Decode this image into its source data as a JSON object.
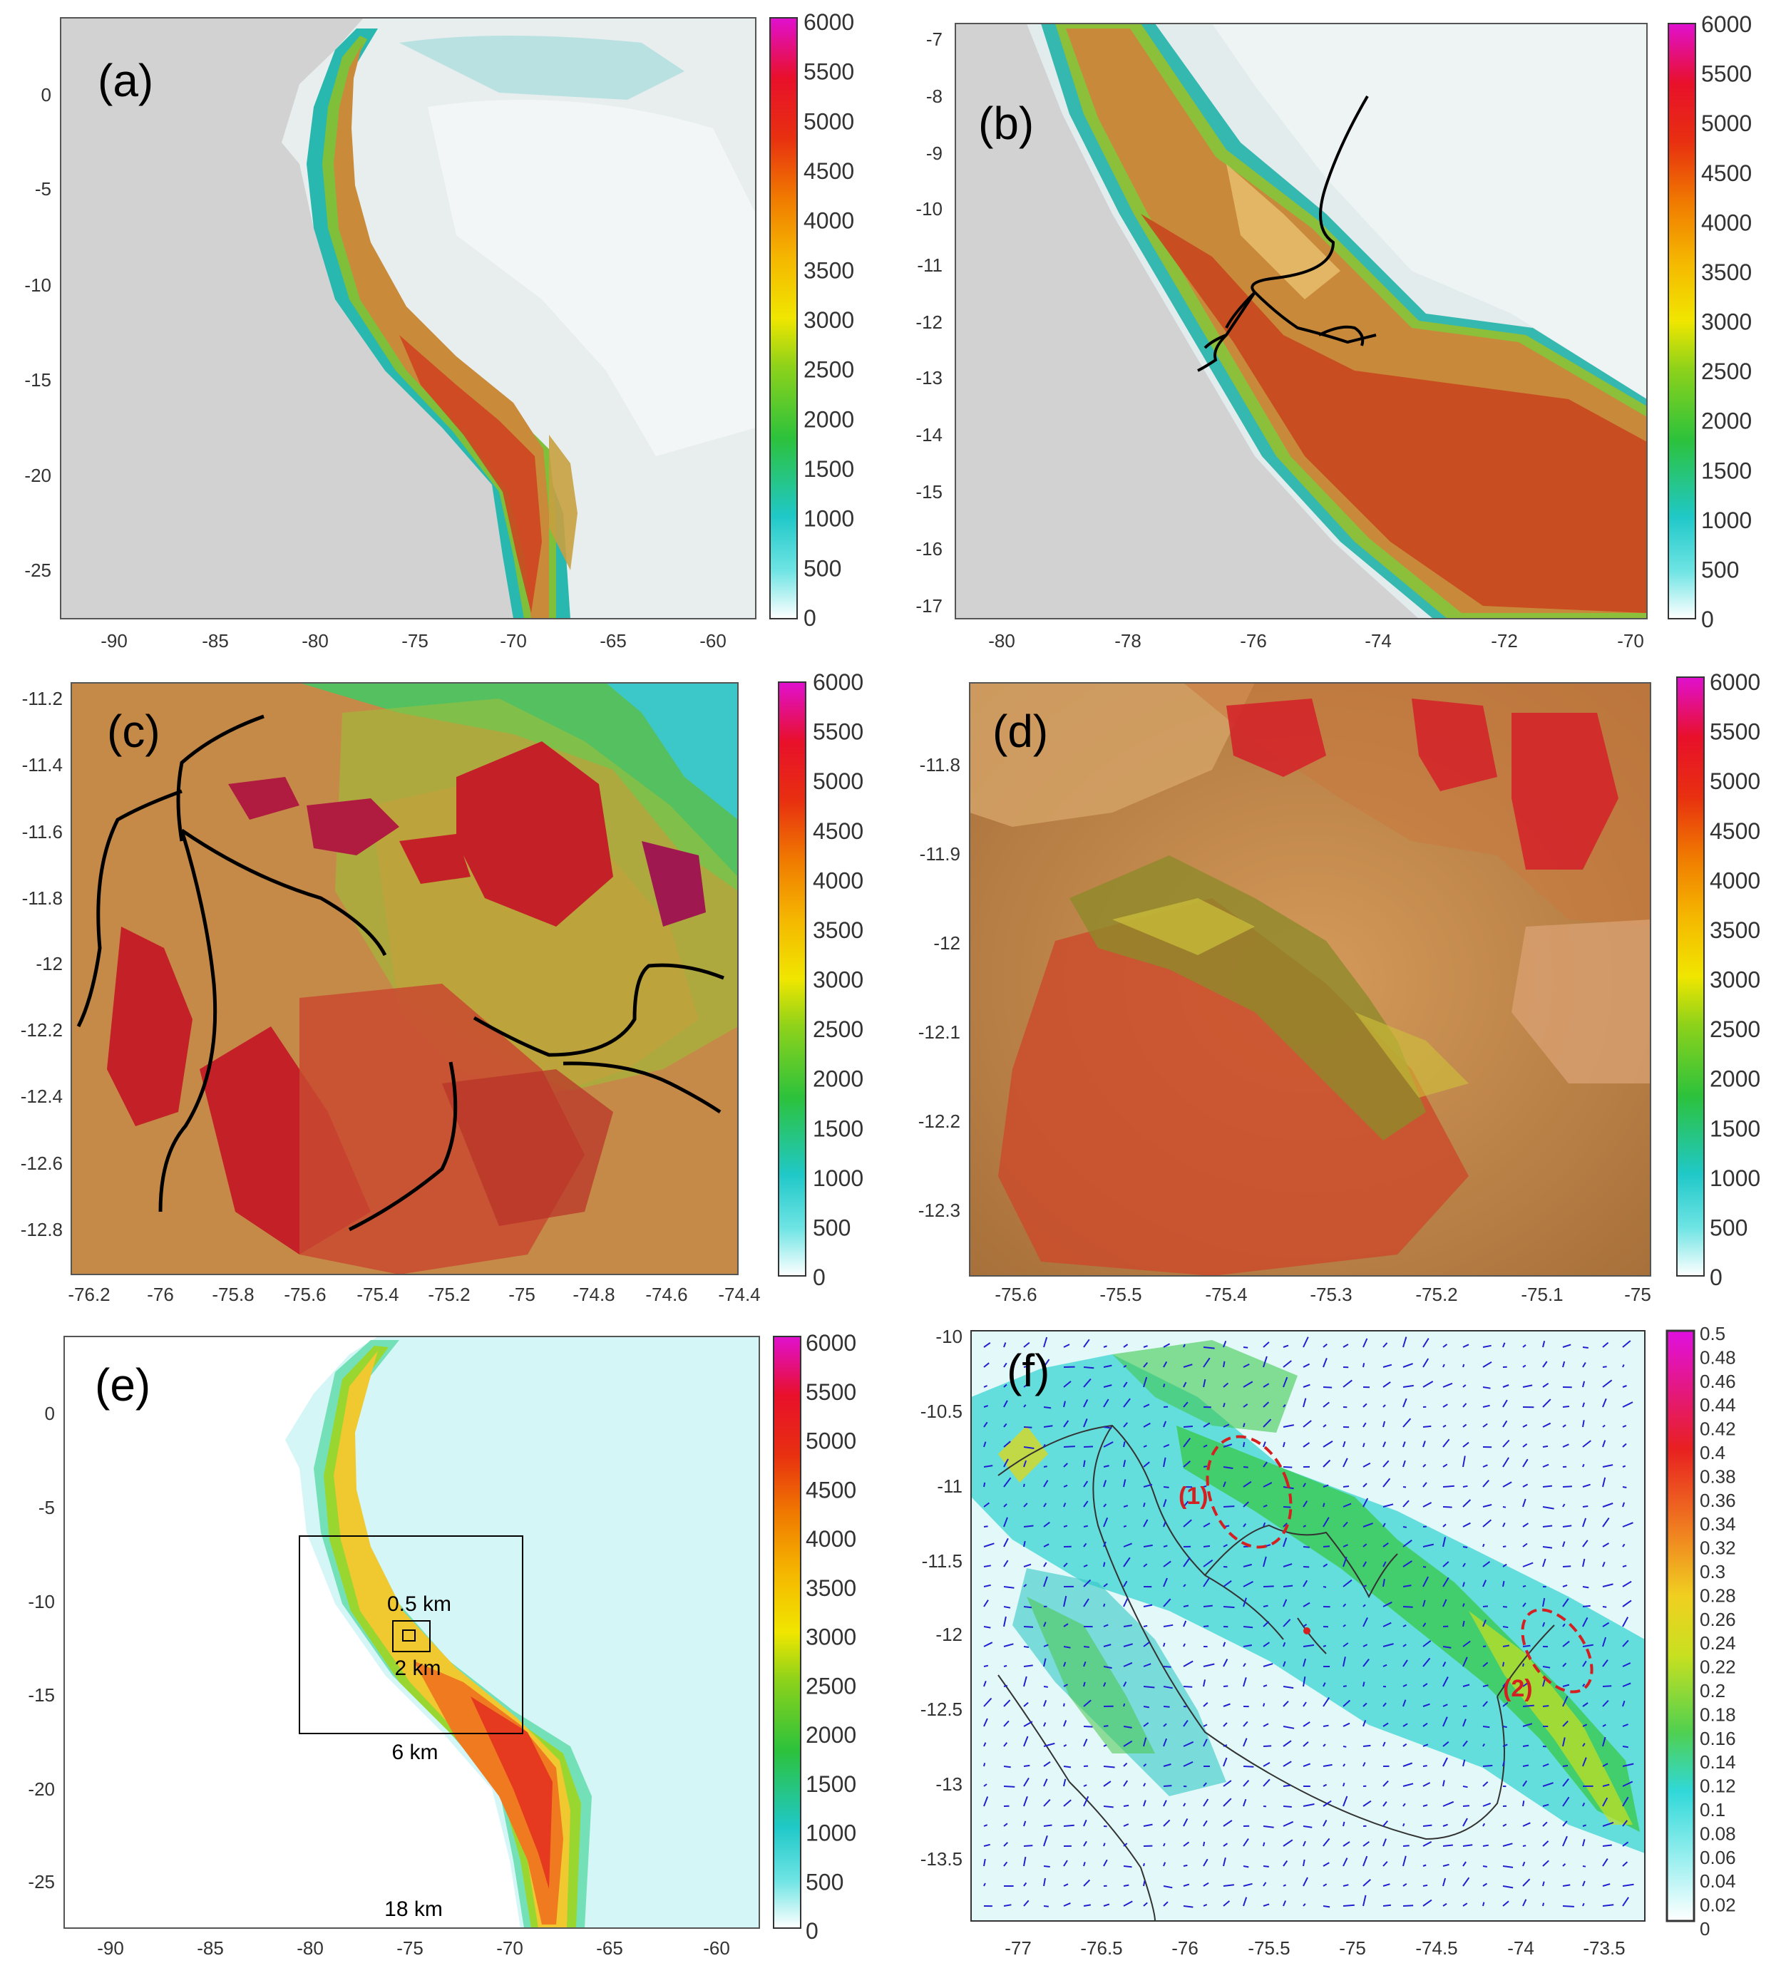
{
  "panels": [
    {
      "id": "a",
      "label": "(a)",
      "x_ticks": [
        "-90",
        "-85",
        "-80",
        "-75",
        "-70",
        "-65",
        "-60"
      ],
      "y_ticks": [
        "0",
        "-5",
        "-10",
        "-15",
        "-20",
        "-25"
      ],
      "colorbar_ticks": [
        "6000",
        "5500",
        "5000",
        "4500",
        "4000",
        "3500",
        "3000",
        "2500",
        "2000",
        "1500",
        "1000",
        "500",
        "0"
      ]
    },
    {
      "id": "b",
      "label": "(b)",
      "x_ticks": [
        "-80",
        "-78",
        "-76",
        "-74",
        "-72",
        "-70"
      ],
      "y_ticks": [
        "-7",
        "-8",
        "-9",
        "-10",
        "-11",
        "-12",
        "-13",
        "-14",
        "-15",
        "-16",
        "-17"
      ],
      "colorbar_ticks": [
        "6000",
        "5500",
        "5000",
        "4500",
        "4000",
        "3500",
        "3000",
        "2500",
        "2000",
        "1500",
        "1000",
        "500",
        "0"
      ]
    },
    {
      "id": "c",
      "label": "(c)",
      "x_ticks": [
        "-76.2",
        "-76",
        "-75.8",
        "-75.6",
        "-75.4",
        "-75.2",
        "-75",
        "-74.8",
        "-74.6",
        "-74.4"
      ],
      "y_ticks": [
        "-11.2",
        "-11.4",
        "-11.6",
        "-11.8",
        "-12",
        "-12.2",
        "-12.4",
        "-12.6",
        "-12.8"
      ],
      "colorbar_ticks": [
        "6000",
        "5500",
        "5000",
        "4500",
        "4000",
        "3500",
        "3000",
        "2500",
        "2000",
        "1500",
        "1000",
        "500",
        "0"
      ]
    },
    {
      "id": "d",
      "label": "(d)",
      "x_ticks": [
        "-75.6",
        "-75.5",
        "-75.4",
        "-75.3",
        "-75.2",
        "-75.1",
        "-75"
      ],
      "y_ticks": [
        "-11.8",
        "-11.9",
        "-12",
        "-12.1",
        "-12.2",
        "-12.3"
      ],
      "colorbar_ticks": [
        "6000",
        "5500",
        "5000",
        "4500",
        "4000",
        "3500",
        "3000",
        "2500",
        "2000",
        "1500",
        "1000",
        "500",
        "0"
      ]
    },
    {
      "id": "e",
      "label": "(e)",
      "x_ticks": [
        "-90",
        "-85",
        "-80",
        "-75",
        "-70",
        "-65",
        "-60"
      ],
      "y_ticks": [
        "0",
        "-5",
        "-10",
        "-15",
        "-20",
        "-25"
      ],
      "colorbar_ticks": [
        "6000",
        "5500",
        "5000",
        "4500",
        "4000",
        "3500",
        "3000",
        "2500",
        "2000",
        "1500",
        "1000",
        "500",
        "0"
      ],
      "domain_labels": [
        "0.5 km",
        "2 km",
        "6 km",
        "18 km"
      ]
    },
    {
      "id": "f",
      "label": "(f)",
      "x_ticks": [
        "-77",
        "-76.5",
        "-76",
        "-75.5",
        "-75",
        "-74.5",
        "-74",
        "-73.5"
      ],
      "y_ticks": [
        "-10",
        "-10.5",
        "-11",
        "-11.5",
        "-12",
        "-12.5",
        "-13",
        "-13.5"
      ],
      "colorbar_ticks": [
        "0.5",
        "0.48",
        "0.46",
        "0.44",
        "0.42",
        "0.4",
        "0.38",
        "0.36",
        "0.34",
        "0.32",
        "0.3",
        "0.28",
        "0.26",
        "0.24",
        "0.22",
        "0.2",
        "0.18",
        "0.16",
        "0.14",
        "0.12",
        "0.1",
        "0.08",
        "0.06",
        "0.04",
        "0.02",
        "0"
      ],
      "annotations": [
        "(1)",
        "(2)"
      ],
      "annotation_color": "#d42020",
      "vector_color": "#2020d0"
    }
  ],
  "colors": {
    "elevation_scale": [
      "#ffffff",
      "#6fe4e4",
      "#20c8c8",
      "#2cc23c",
      "#8ed21a",
      "#f0e600",
      "#f5b700",
      "#f07a00",
      "#e83010",
      "#e8102a",
      "#e010d0"
    ],
    "wind_scale": [
      "#ffffff",
      "#9ff0f0",
      "#30d8d8",
      "#50d050",
      "#c8e020",
      "#f0d020",
      "#f08020",
      "#e82020",
      "#e010e0"
    ]
  }
}
